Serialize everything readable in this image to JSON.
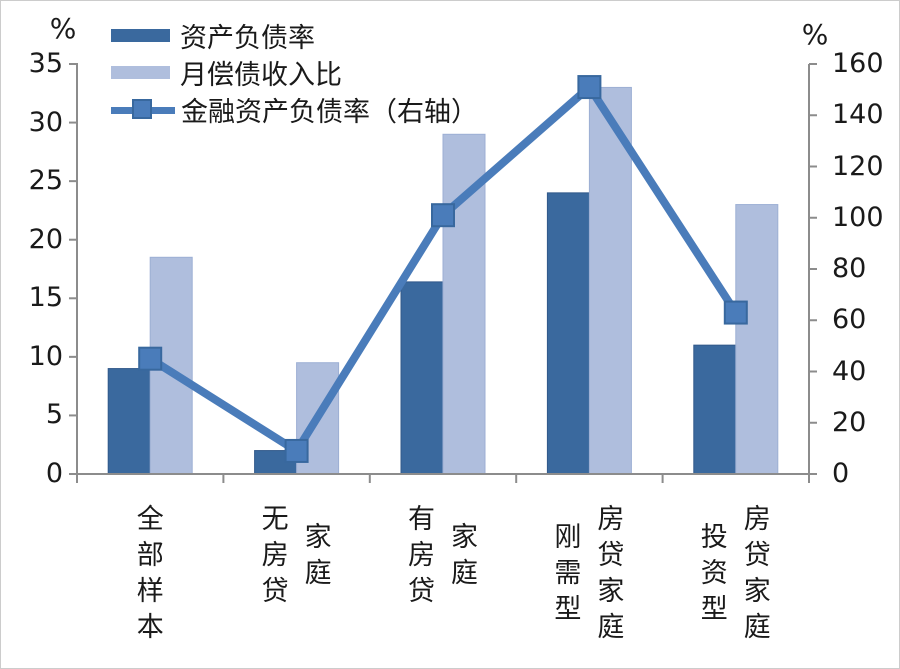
{
  "chart_data": {
    "type": "bar",
    "subtype": "combo-bar-line-dual-axis",
    "categories": [
      "全部样本",
      "无房贷家庭",
      "有房贷家庭",
      "刚需型房贷家庭",
      "投资型房贷家庭"
    ],
    "category_display_columns": [
      [
        "全部样本"
      ],
      [
        "无房贷",
        "家庭"
      ],
      [
        "有房贷",
        "家庭"
      ],
      [
        "刚需型",
        "房贷家庭"
      ],
      [
        "投资型",
        "房贷家庭"
      ]
    ],
    "series": [
      {
        "name": "资产负债率",
        "type": "bar",
        "axis": "left",
        "color": "#3A699E",
        "edge_color": "#31598A",
        "values": [
          9,
          2,
          16.4,
          24,
          11
        ]
      },
      {
        "name": "月偿债收入比",
        "type": "bar",
        "axis": "left",
        "color": "#AFBEDD",
        "edge_color": "#9CAFD4",
        "values": [
          18.5,
          9.5,
          29,
          33,
          23
        ]
      },
      {
        "name": "金融资产负债率（右轴）",
        "type": "line",
        "axis": "right",
        "color": "#4A7CBA",
        "marker": "square",
        "marker_edge_color": "#38689E",
        "values": [
          45,
          9,
          101,
          151,
          63
        ]
      }
    ],
    "left_axis": {
      "label": "%",
      "min": 0,
      "max": 35,
      "step": 5,
      "ticks": [
        35,
        30,
        25,
        20,
        15,
        10,
        5,
        0
      ]
    },
    "right_axis": {
      "label": "%",
      "min": 0,
      "max": 160,
      "step": 20,
      "ticks": [
        160,
        140,
        120,
        100,
        80,
        60,
        40,
        20,
        0
      ]
    },
    "axis_color": "#8C8C8C",
    "text_color": "#1A1A1A",
    "grid": false,
    "legend_position": "top-left",
    "title": "",
    "xlabel": "",
    "ylabel": ""
  }
}
